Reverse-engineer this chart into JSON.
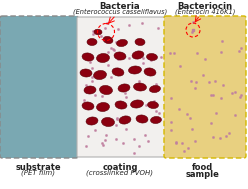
{
  "fig_width": 2.48,
  "fig_height": 1.89,
  "dpi": 100,
  "bg_color": "#ffffff",
  "substrate_color": "#7aa8b2",
  "substrate_border": "#888888",
  "coating_color": "#f2f0ee",
  "coating_border": "#b0b0b0",
  "food_color": "#e8d080",
  "food_border": "#d4b800",
  "bacteria_fill": "#8b0010",
  "bacteria_edge": "#5a0008",
  "dot_color": "#c080a0",
  "text_color": "#222222",
  "arrow_color": "#cc0000",
  "substrate_label": "substrate",
  "substrate_sublabel": "(PET film)",
  "coating_label": "coating",
  "coating_sublabel": "(crosslinked PVOH)",
  "food_label": "food",
  "food_sublabel": "sample",
  "bacteria_title": "Bacteria",
  "bacteria_subtitle": "(Enterococcus casseliflavus)",
  "bacteriocin_title": "Bacteriocin",
  "bacteriocin_subtitle": "(Enterocin 416K1)",
  "bacteria_positions": [
    [
      92,
      42,
      5,
      3.5,
      0
    ],
    [
      108,
      40,
      5,
      3.5,
      15
    ],
    [
      122,
      43,
      5.5,
      3.5,
      -10
    ],
    [
      140,
      42,
      5,
      3.5,
      5
    ],
    [
      88,
      57,
      6,
      4,
      10
    ],
    [
      103,
      58,
      6.5,
      4.5,
      -5
    ],
    [
      120,
      56,
      6,
      4,
      8
    ],
    [
      138,
      55,
      6,
      4,
      -12
    ],
    [
      152,
      57,
      5.5,
      3.5,
      5
    ],
    [
      86,
      73,
      6,
      4,
      5
    ],
    [
      100,
      75,
      6.5,
      4.5,
      -8
    ],
    [
      118,
      72,
      6,
      4,
      12
    ],
    [
      135,
      70,
      6.5,
      4,
      -5
    ],
    [
      150,
      72,
      6,
      4,
      10
    ],
    [
      90,
      90,
      6,
      4,
      -5
    ],
    [
      106,
      90,
      6.5,
      4.5,
      8
    ],
    [
      124,
      88,
      6,
      4,
      -10
    ],
    [
      140,
      87,
      6.5,
      4,
      5
    ],
    [
      155,
      89,
      5.5,
      3.5,
      -8
    ],
    [
      88,
      106,
      6,
      4,
      8
    ],
    [
      103,
      107,
      6.5,
      4.5,
      -5
    ],
    [
      121,
      105,
      6,
      4,
      10
    ],
    [
      137,
      104,
      6.5,
      4,
      -8
    ],
    [
      153,
      105,
      5.5,
      3.5,
      5
    ],
    [
      92,
      121,
      6,
      4,
      -8
    ],
    [
      108,
      122,
      6.5,
      4.5,
      5
    ],
    [
      125,
      120,
      6,
      4,
      -12
    ],
    [
      142,
      119,
      6,
      4,
      8
    ],
    [
      156,
      120,
      5.5,
      3.5,
      -5
    ]
  ],
  "small_bacteria": [
    [
      98,
      32,
      4,
      2.8,
      5
    ]
  ]
}
